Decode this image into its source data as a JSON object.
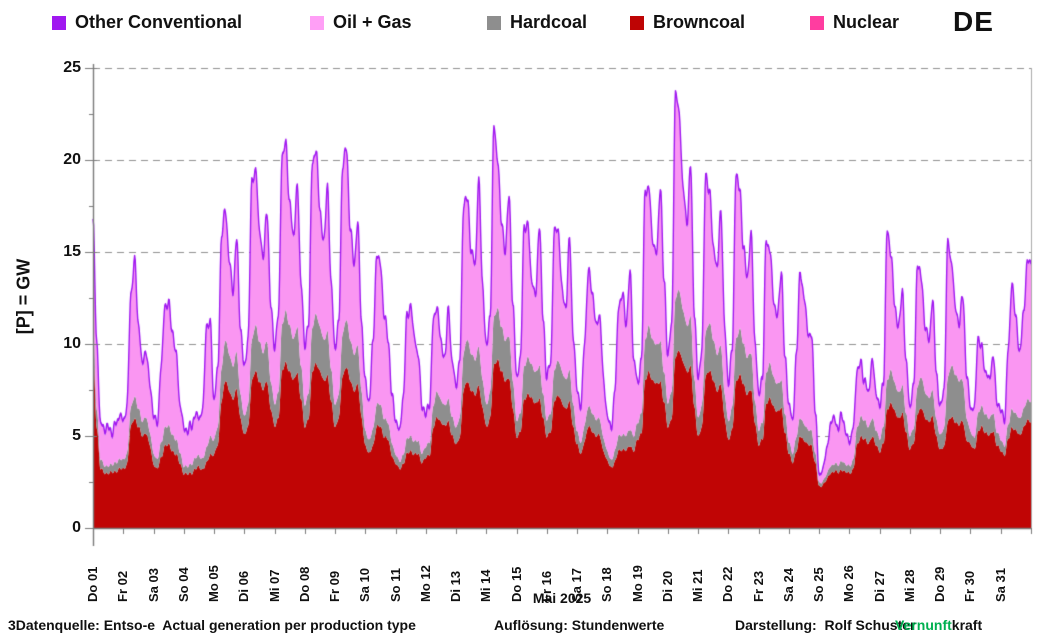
{
  "header": {
    "country_code": "DE",
    "legend": [
      {
        "label": "Other Conventional",
        "color": "#A018F0"
      },
      {
        "label": "Oil + Gas",
        "color": "#FF9FF6"
      },
      {
        "label": "Hardcoal",
        "color": "#8E8E8E"
      },
      {
        "label": "Browncoal",
        "color": "#BE0404"
      },
      {
        "label": "Nuclear",
        "color": "#FF3DA0"
      }
    ]
  },
  "chart_data": {
    "type": "area",
    "stacked": true,
    "title": "",
    "ylabel": "[P] = GW",
    "xlabel": "Mai 2025",
    "ylim": [
      0,
      25
    ],
    "yticks": [
      0,
      5,
      10,
      15,
      20,
      25
    ],
    "y_minor_step": 2.5,
    "grid": "horizontal dashed",
    "legend_position": "top",
    "samples_per_day": 8,
    "sample_hours": [
      0,
      3,
      6,
      9,
      12,
      15,
      18,
      21
    ],
    "categories": [
      "Do 01",
      "Fr 02",
      "Sa 03",
      "So 04",
      "Mo 05",
      "Di 06",
      "Mi 07",
      "Do 08",
      "Fr 09",
      "Sa 10",
      "So 11",
      "Mo 12",
      "Di 13",
      "Mi 14",
      "Do 15",
      "Fr 16",
      "Sa 17",
      "So 18",
      "Mo 19",
      "Di 20",
      "Mi 21",
      "Do 22",
      "Fr 23",
      "Sa 24",
      "So 25",
      "Mo 26",
      "Di 27",
      "Mi 28",
      "Do 29",
      "Fr 30",
      "Sa 31"
    ],
    "stack_order_bottom_to_top": [
      "Nuclear",
      "Browncoal",
      "Hardcoal",
      "Oil + Gas",
      "Other Conventional"
    ],
    "unit": "GW",
    "series": [
      {
        "name": "Nuclear",
        "color": "#FF3DA0",
        "constant": 0
      },
      {
        "name": "Browncoal",
        "color": "#C00505",
        "days": [
          [
            9.8,
            5.5,
            3.2,
            3.0,
            3.0,
            3.0,
            3.1,
            3.2
          ],
          [
            3.2,
            3.5,
            5.5,
            6.0,
            5.5,
            5.0,
            5.2,
            4.5
          ],
          [
            3.5,
            3.2,
            3.8,
            4.5,
            4.5,
            4.2,
            4.0,
            3.5
          ],
          [
            3.0,
            2.9,
            3.0,
            3.2,
            3.3,
            3.2,
            3.5,
            4.0
          ],
          [
            4.0,
            4.5,
            7.0,
            8.0,
            7.5,
            7.0,
            7.5,
            6.0
          ],
          [
            5.0,
            5.5,
            8.0,
            8.5,
            8.0,
            7.5,
            8.0,
            6.5
          ],
          [
            5.5,
            6.0,
            8.5,
            9.0,
            8.5,
            8.0,
            8.5,
            7.0
          ],
          [
            5.5,
            6.0,
            8.5,
            9.0,
            8.5,
            8.0,
            8.3,
            6.8
          ],
          [
            5.5,
            6.0,
            8.3,
            8.8,
            8.0,
            7.5,
            7.8,
            6.0
          ],
          [
            4.5,
            4.0,
            4.5,
            5.5,
            5.5,
            5.0,
            4.8,
            4.0
          ],
          [
            3.5,
            3.2,
            3.5,
            4.0,
            4.2,
            4.0,
            4.0,
            3.6
          ],
          [
            3.8,
            4.0,
            5.5,
            6.0,
            5.8,
            5.5,
            5.8,
            5.0
          ],
          [
            4.5,
            5.0,
            7.5,
            8.0,
            7.5,
            7.2,
            7.8,
            6.5
          ],
          [
            5.5,
            6.0,
            8.8,
            9.2,
            8.5,
            8.0,
            8.2,
            6.5
          ],
          [
            5.0,
            5.2,
            7.0,
            7.3,
            7.0,
            6.8,
            7.0,
            6.0
          ],
          [
            5.0,
            5.2,
            7.0,
            7.2,
            6.8,
            6.5,
            6.8,
            5.5
          ],
          [
            4.5,
            4.0,
            4.8,
            5.5,
            5.3,
            5.0,
            5.0,
            4.2
          ],
          [
            3.6,
            3.3,
            3.6,
            4.2,
            4.3,
            4.2,
            4.5,
            4.2
          ],
          [
            4.8,
            5.2,
            8.0,
            8.5,
            8.0,
            7.8,
            8.0,
            6.8
          ],
          [
            5.5,
            6.0,
            9.3,
            9.7,
            9.0,
            8.5,
            8.8,
            6.5
          ],
          [
            5.0,
            5.5,
            8.3,
            8.6,
            8.0,
            7.5,
            7.8,
            6.0
          ],
          [
            4.8,
            5.3,
            8.0,
            8.3,
            7.8,
            7.3,
            7.5,
            5.8
          ],
          [
            4.5,
            4.8,
            6.8,
            7.0,
            6.6,
            6.3,
            6.5,
            5.2
          ],
          [
            4.0,
            3.6,
            4.2,
            5.0,
            4.8,
            4.5,
            4.5,
            3.5
          ],
          [
            2.2,
            2.4,
            2.6,
            3.0,
            3.1,
            3.0,
            3.2,
            3.0
          ],
          [
            3.0,
            3.2,
            4.5,
            5.0,
            4.8,
            4.6,
            5.0,
            4.5
          ],
          [
            4.2,
            4.6,
            6.5,
            6.8,
            6.3,
            6.0,
            6.2,
            5.2
          ],
          [
            4.3,
            4.6,
            6.3,
            6.5,
            6.0,
            5.8,
            6.0,
            5.0
          ],
          [
            4.2,
            4.4,
            5.8,
            6.0,
            5.8,
            5.6,
            5.8,
            4.8
          ],
          [
            4.5,
            4.3,
            5.2,
            5.5,
            5.2,
            5.0,
            5.3,
            4.5
          ],
          [
            4.2,
            4.0,
            4.8,
            5.5,
            5.3,
            5.0,
            5.5,
            5.8
          ]
        ]
      },
      {
        "name": "Hardcoal",
        "color": "#8E8E8E",
        "days": [
          [
            1.6,
            1.0,
            0.5,
            0.4,
            0.4,
            0.4,
            0.5,
            0.5
          ],
          [
            0.5,
            0.6,
            1.0,
            1.2,
            1.0,
            0.8,
            0.9,
            0.7
          ],
          [
            0.6,
            0.5,
            0.8,
            1.0,
            1.0,
            0.9,
            0.8,
            0.6
          ],
          [
            0.4,
            0.4,
            0.5,
            0.6,
            0.6,
            0.6,
            0.8,
            1.0
          ],
          [
            0.8,
            1.0,
            1.8,
            2.2,
            2.0,
            1.8,
            2.0,
            1.3
          ],
          [
            1.0,
            1.2,
            2.2,
            2.5,
            2.2,
            2.0,
            2.2,
            1.5
          ],
          [
            1.2,
            1.4,
            2.5,
            2.8,
            2.5,
            2.2,
            2.5,
            1.8
          ],
          [
            1.2,
            1.4,
            2.4,
            2.7,
            2.4,
            2.2,
            2.4,
            1.7
          ],
          [
            1.2,
            1.3,
            2.3,
            2.6,
            2.2,
            2.0,
            2.1,
            1.4
          ],
          [
            0.8,
            0.7,
            0.9,
            1.2,
            1.2,
            1.0,
            0.9,
            0.7
          ],
          [
            0.5,
            0.4,
            0.5,
            0.8,
            0.8,
            0.7,
            0.7,
            0.5
          ],
          [
            0.6,
            0.7,
            1.2,
            1.4,
            1.2,
            1.1,
            1.2,
            1.0
          ],
          [
            0.9,
            1.1,
            2.0,
            2.3,
            2.0,
            1.9,
            2.1,
            1.5
          ],
          [
            1.2,
            1.4,
            2.6,
            2.8,
            2.4,
            2.2,
            2.3,
            1.5
          ],
          [
            0.9,
            1.0,
            1.8,
            2.0,
            1.8,
            1.7,
            1.8,
            1.3
          ],
          [
            0.9,
            1.0,
            1.7,
            1.9,
            1.7,
            1.6,
            1.7,
            1.2
          ],
          [
            0.7,
            0.6,
            0.9,
            1.1,
            1.0,
            0.9,
            0.9,
            0.7
          ],
          [
            0.5,
            0.4,
            0.6,
            0.8,
            0.8,
            0.8,
            0.9,
            0.8
          ],
          [
            0.9,
            1.1,
            2.2,
            2.5,
            2.2,
            2.1,
            2.2,
            1.6
          ],
          [
            1.3,
            1.5,
            3.2,
            3.3,
            2.8,
            2.5,
            2.7,
            1.5
          ],
          [
            1.0,
            1.2,
            2.4,
            2.6,
            2.2,
            2.0,
            2.1,
            1.3
          ],
          [
            1.0,
            1.2,
            2.3,
            2.5,
            2.2,
            2.0,
            2.0,
            1.2
          ],
          [
            0.8,
            0.9,
            1.7,
            1.9,
            1.6,
            1.5,
            1.5,
            1.0
          ],
          [
            0.6,
            0.5,
            0.8,
            1.0,
            0.9,
            0.8,
            0.8,
            0.5
          ],
          [
            0.2,
            0.2,
            0.3,
            0.4,
            0.4,
            0.4,
            0.5,
            0.4
          ],
          [
            0.4,
            0.5,
            0.9,
            1.1,
            1.0,
            0.9,
            1.0,
            0.8
          ],
          [
            0.7,
            0.9,
            1.6,
            1.8,
            1.5,
            1.4,
            1.5,
            1.0
          ],
          [
            0.7,
            0.8,
            1.5,
            1.7,
            1.4,
            1.3,
            1.4,
            0.9
          ],
          [
            0.8,
            1.0,
            2.4,
            2.8,
            2.6,
            2.4,
            2.2,
            1.2
          ],
          [
            0.7,
            0.6,
            1.0,
            1.1,
            1.0,
            0.9,
            1.0,
            0.7
          ],
          [
            0.6,
            0.5,
            0.8,
            1.0,
            0.9,
            0.9,
            1.0,
            1.1
          ]
        ]
      },
      {
        "name": "Oil + Gas",
        "color": "#FA96F2",
        "days": [
          [
            5.1,
            3.5,
            1.8,
            1.9,
            2.0,
            1.6,
            2.0,
            2.3
          ],
          [
            2.0,
            2.5,
            6.0,
            7.3,
            4.5,
            3.0,
            3.5,
            2.5
          ],
          [
            2.0,
            1.8,
            4.0,
            6.5,
            6.5,
            5.5,
            4.5,
            2.5
          ],
          [
            2.0,
            1.8,
            2.0,
            2.2,
            2.0,
            2.5,
            6.5,
            6.0
          ],
          [
            2.0,
            3.0,
            7.0,
            7.0,
            5.0,
            4.0,
            6.0,
            3.5
          ],
          [
            2.5,
            3.5,
            8.5,
            8.3,
            6.0,
            5.0,
            7.0,
            4.0
          ],
          [
            3.0,
            4.0,
            9.0,
            9.0,
            6.5,
            5.5,
            7.5,
            4.5
          ],
          [
            3.0,
            3.8,
            8.8,
            8.8,
            6.2,
            5.2,
            7.8,
            4.4
          ],
          [
            3.0,
            3.8,
            9.0,
            9.2,
            6.0,
            4.8,
            6.5,
            3.6
          ],
          [
            2.5,
            2.0,
            4.5,
            8.0,
            7.5,
            5.5,
            4.5,
            2.5
          ],
          [
            1.8,
            1.5,
            3.0,
            6.5,
            7.0,
            5.5,
            4.5,
            2.5
          ],
          [
            1.6,
            2.0,
            4.5,
            4.5,
            3.0,
            2.5,
            4.8,
            2.8
          ],
          [
            2.2,
            3.0,
            8.0,
            7.5,
            5.5,
            5.0,
            9.0,
            5.0
          ],
          [
            3.0,
            4.0,
            10.2,
            8.0,
            5.5,
            4.8,
            7.5,
            4.0
          ],
          [
            2.3,
            2.8,
            7.5,
            7.0,
            4.5,
            4.0,
            7.5,
            4.0
          ],
          [
            2.2,
            2.7,
            7.4,
            7.0,
            4.3,
            3.8,
            7.0,
            3.5
          ],
          [
            2.2,
            1.8,
            4.5,
            7.2,
            6.5,
            5.0,
            5.5,
            3.0
          ],
          [
            1.8,
            1.6,
            3.2,
            7.0,
            7.5,
            6.0,
            8.4,
            4.0
          ],
          [
            2.0,
            2.8,
            8.0,
            7.3,
            5.3,
            4.8,
            8.3,
            4.8
          ],
          [
            2.5,
            3.5,
            11.0,
            9.5,
            6.5,
            5.5,
            8.0,
            3.5
          ],
          [
            2.0,
            3.0,
            8.4,
            7.0,
            5.0,
            4.5,
            7.3,
            3.5
          ],
          [
            2.0,
            3.0,
            8.8,
            7.5,
            5.0,
            4.3,
            6.3,
            3.2
          ],
          [
            1.8,
            2.4,
            7.1,
            6.0,
            4.0,
            3.6,
            5.8,
            2.8
          ],
          [
            2.0,
            1.6,
            4.5,
            7.8,
            6.8,
            5.2,
            5.0,
            2.2
          ],
          [
            0.3,
            0.6,
            1.2,
            2.2,
            2.4,
            1.8,
            2.5,
            1.6
          ],
          [
            1.2,
            1.6,
            3.0,
            2.8,
            2.0,
            1.8,
            3.0,
            2.0
          ],
          [
            1.6,
            2.4,
            8.0,
            6.2,
            4.0,
            3.5,
            5.0,
            2.6
          ],
          [
            1.5,
            2.2,
            6.6,
            5.2,
            3.5,
            3.0,
            4.8,
            2.4
          ],
          [
            1.4,
            2.0,
            7.2,
            5.5,
            3.5,
            3.0,
            4.5,
            2.2
          ],
          [
            1.2,
            1.5,
            4.0,
            3.0,
            2.2,
            2.0,
            3.0,
            1.5
          ],
          [
            1.5,
            1.3,
            4.0,
            6.8,
            5.0,
            3.5,
            5.0,
            7.4
          ]
        ]
      },
      {
        "name": "Other Conventional",
        "color": "#A018F0",
        "constant": 0.12
      }
    ]
  },
  "footer": {
    "source": "3Datenquelle: Entso-e  Actual generation per production type",
    "resolution": "Auflösung: Stundenwerte",
    "author": "Darstellung:  Rolf Schuster",
    "brand_green": "Vernunft",
    "brand_black": "kraft",
    "brand_green_color": "#00B050"
  }
}
